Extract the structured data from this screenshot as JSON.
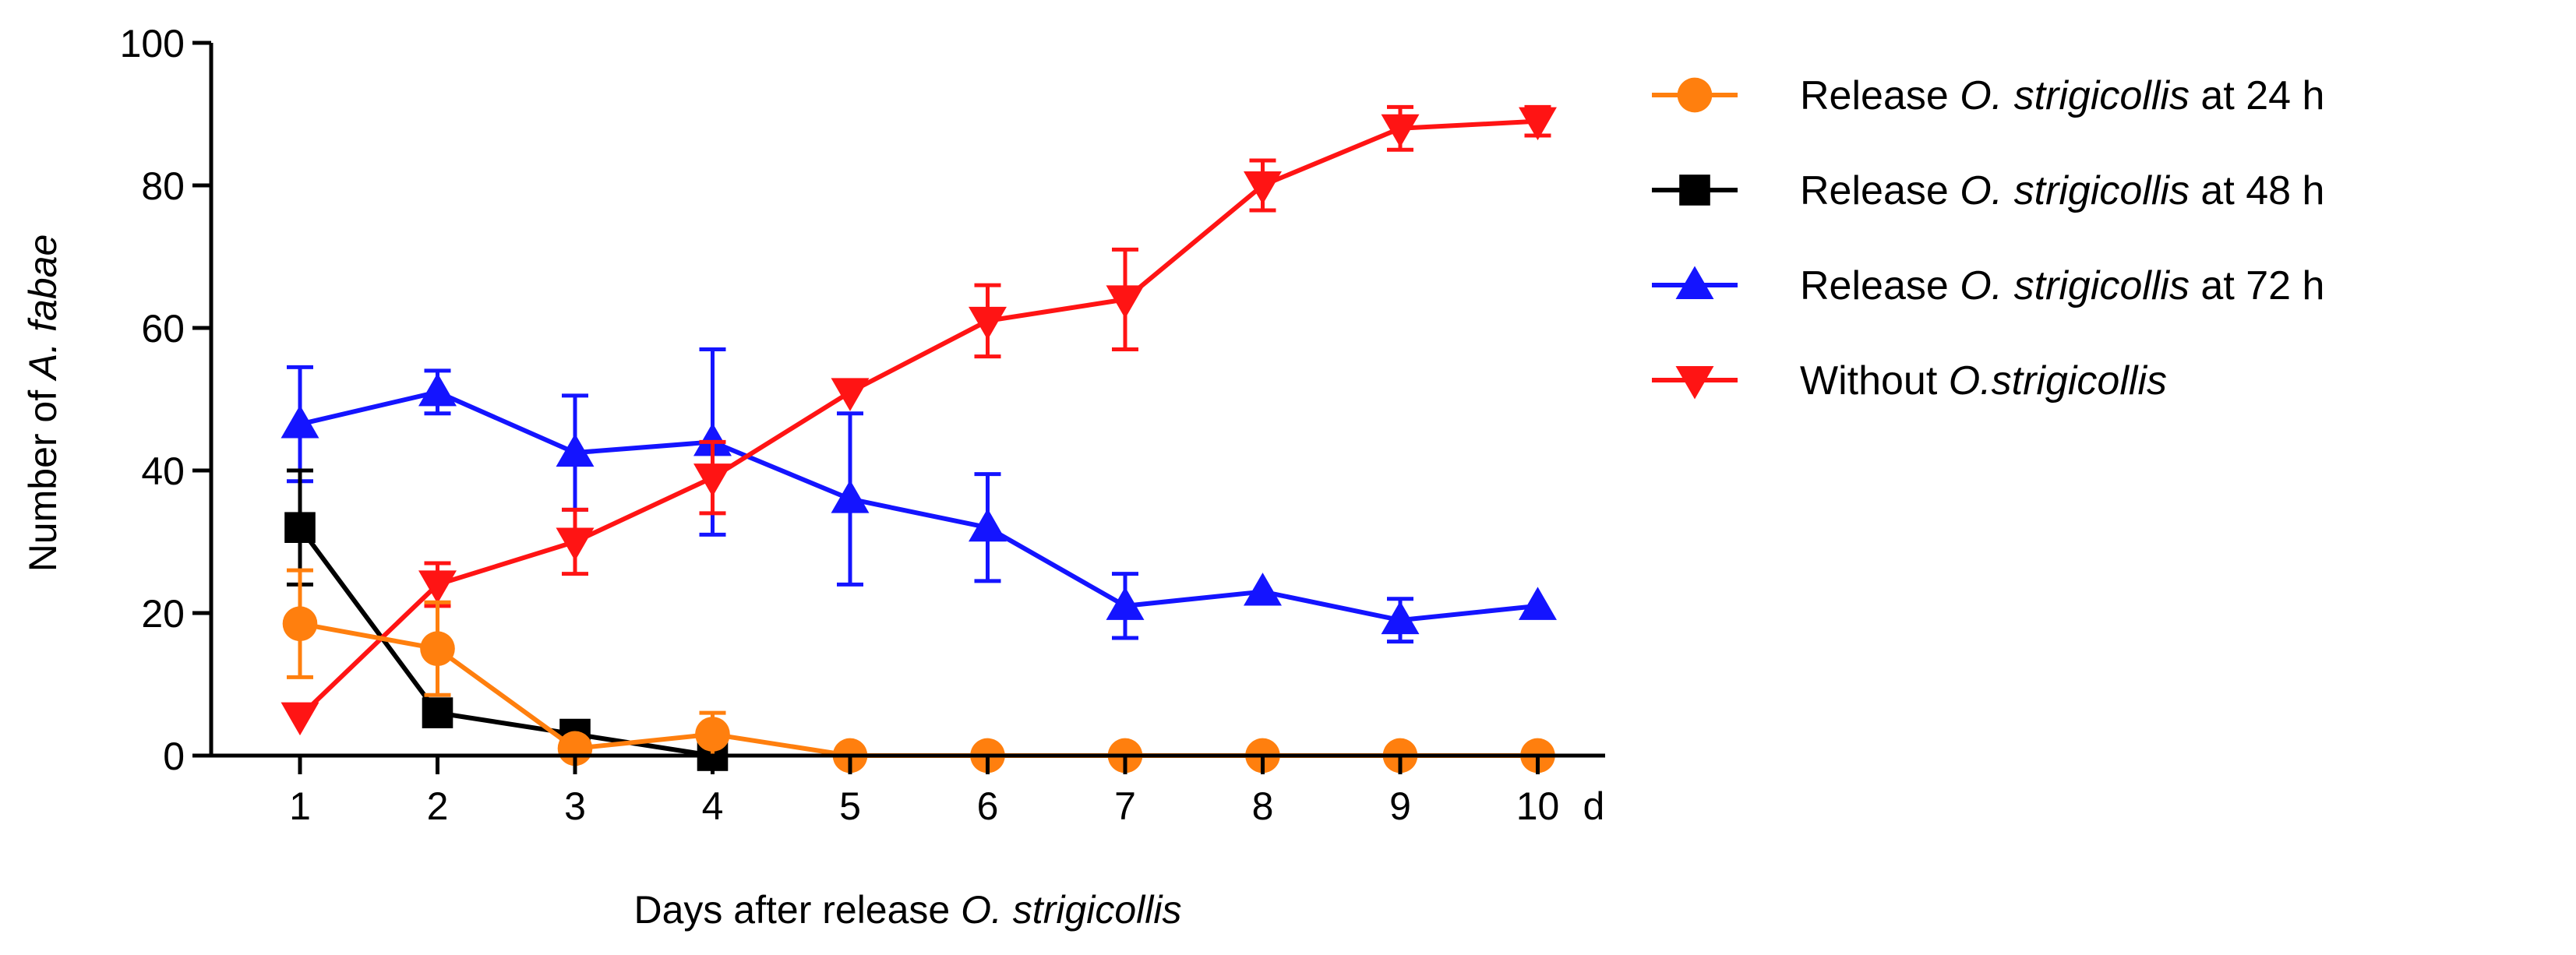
{
  "chart_data": {
    "type": "line",
    "xlabel_prefix": "Days after release ",
    "xlabel_species": "O. strigicollis",
    "ylabel_prefix": "Number of ",
    "ylabel_species": "A. fabae",
    "x_unit": "d",
    "categories": [
      "1",
      "2",
      "3",
      "4",
      "5",
      "6",
      "7",
      "8",
      "9",
      "10"
    ],
    "x": [
      1,
      2,
      3,
      4,
      5,
      6,
      7,
      8,
      9,
      10
    ],
    "ylim": [
      0,
      100
    ],
    "yticks": [
      0,
      20,
      40,
      60,
      80,
      100
    ],
    "ytick_labels": [
      "0",
      "20",
      "40",
      "60",
      "80",
      "100"
    ],
    "grid": false,
    "legend_position": "right",
    "series": [
      {
        "legend_prefix": "Release ",
        "legend_species": "O. strigicollis",
        "legend_suffix": " at 24 h",
        "color": "#ff7f0e",
        "marker": "circle",
        "x": [
          1,
          2,
          3,
          4,
          5,
          6,
          7,
          8,
          9,
          10
        ],
        "values": [
          18.5,
          15,
          1,
          3,
          0,
          0,
          0,
          0,
          0,
          0
        ],
        "errors": [
          7.5,
          6.5,
          1,
          3,
          0,
          0,
          0,
          0,
          0,
          0
        ]
      },
      {
        "legend_prefix": "Release ",
        "legend_species": "O. strigicollis",
        "legend_suffix": " at 48 h",
        "color": "#000000",
        "marker": "square",
        "x": [
          1,
          2,
          3,
          4
        ],
        "values": [
          32,
          6,
          3,
          0
        ],
        "errors": [
          8,
          0,
          0,
          0
        ]
      },
      {
        "legend_prefix": "Release ",
        "legend_species": "O. strigicollis",
        "legend_suffix": " at 72 h",
        "color": "#1414ff",
        "marker": "triangle-up",
        "x": [
          1,
          2,
          3,
          4,
          5,
          6,
          7,
          8,
          9,
          10
        ],
        "values": [
          46.5,
          51,
          42.5,
          44,
          36,
          32,
          21,
          23,
          19,
          21
        ],
        "errors": [
          8,
          3,
          8,
          13,
          12,
          7.5,
          4.5,
          0,
          3,
          0
        ]
      },
      {
        "legend_prefix": "Without ",
        "legend_species": "O.strigicollis",
        "legend_suffix": "",
        "color": "#ff1414",
        "marker": "triangle-down",
        "x": [
          1,
          2,
          3,
          4,
          5,
          6,
          7,
          8,
          9,
          10
        ],
        "values": [
          5.5,
          24,
          30,
          39,
          51,
          61,
          64,
          80,
          88,
          89
        ],
        "errors": [
          0,
          3,
          4.5,
          5,
          0,
          5,
          7,
          3.5,
          3,
          2
        ]
      }
    ]
  }
}
